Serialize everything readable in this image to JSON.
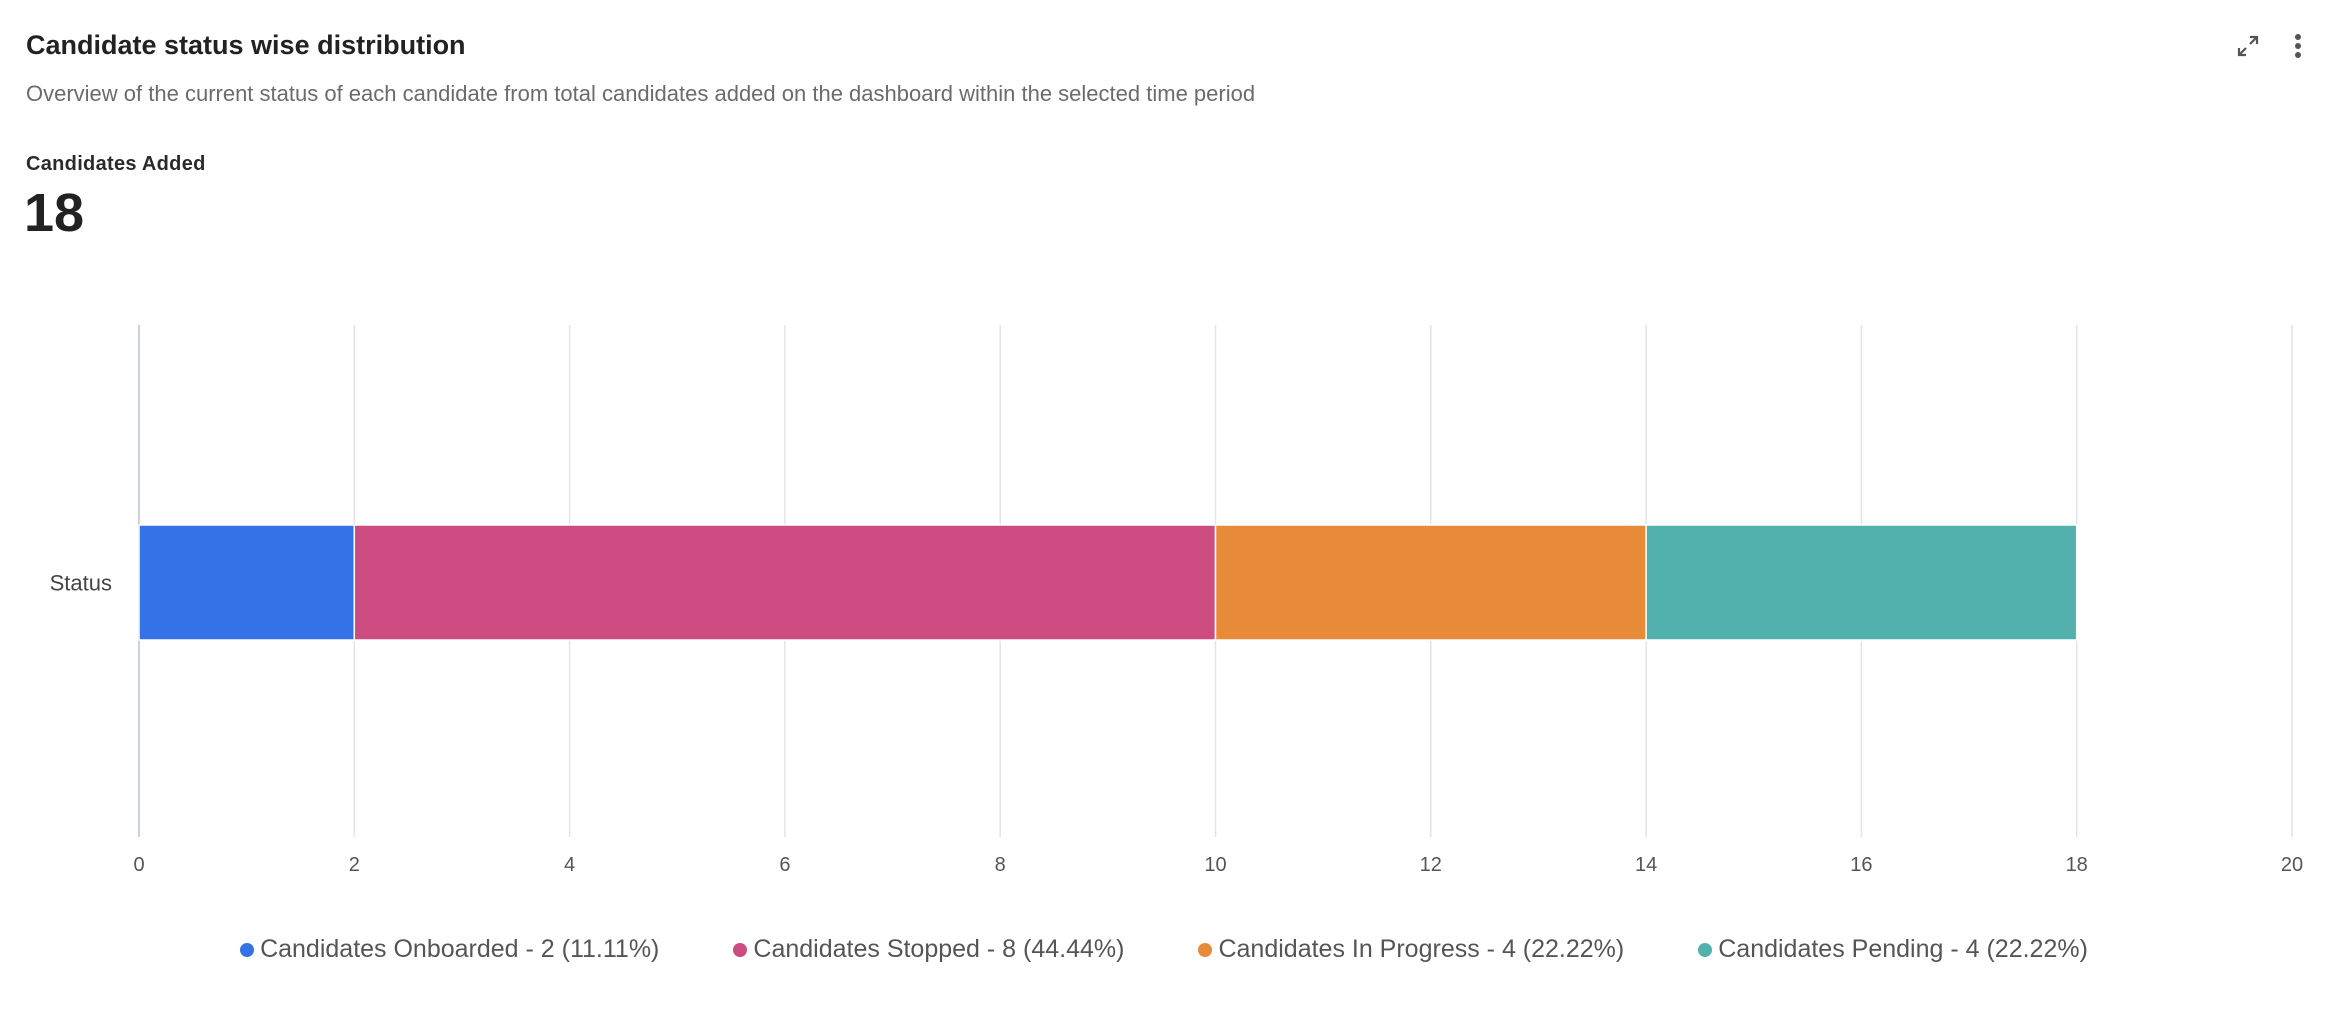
{
  "widget": {
    "title": "Candidate status wise distribution",
    "subtitle": "Overview of the current status of each candidate from total candidates added on the dashboard within the selected time period",
    "metric_label": "Candidates Added",
    "metric_value": "18",
    "actions": {
      "expand_icon": "expand-icon",
      "more_icon": "more-vertical-icon"
    }
  },
  "chart_data": {
    "type": "bar",
    "orientation": "horizontal",
    "stacked": true,
    "categories": [
      "Status"
    ],
    "series": [
      {
        "name": "Candidates Onboarded",
        "values": [
          2
        ],
        "color": "#3572E8"
      },
      {
        "name": "Candidates Stopped",
        "values": [
          8
        ],
        "color": "#CC4B80"
      },
      {
        "name": "Candidates In Progress",
        "values": [
          4
        ],
        "color": "#E88B38"
      },
      {
        "name": "Candidates Pending",
        "values": [
          4
        ],
        "color": "#53B1AD"
      }
    ],
    "xlim": [
      0,
      20
    ],
    "xticks": [
      "0",
      "2",
      "4",
      "6",
      "8",
      "10",
      "12",
      "14",
      "16",
      "18",
      "20"
    ],
    "grid": true,
    "legend_position": "bottom"
  },
  "legend": [
    {
      "label": "Candidates Onboarded - 2 (11.11%)",
      "color": "#3572E8"
    },
    {
      "label": "Candidates Stopped - 8 (44.44%)",
      "color": "#CC4B80"
    },
    {
      "label": "Candidates In Progress - 4 (22.22%)",
      "color": "#E88B38"
    },
    {
      "label": "Candidates Pending - 4 (22.22%)",
      "color": "#53B1AD"
    }
  ]
}
